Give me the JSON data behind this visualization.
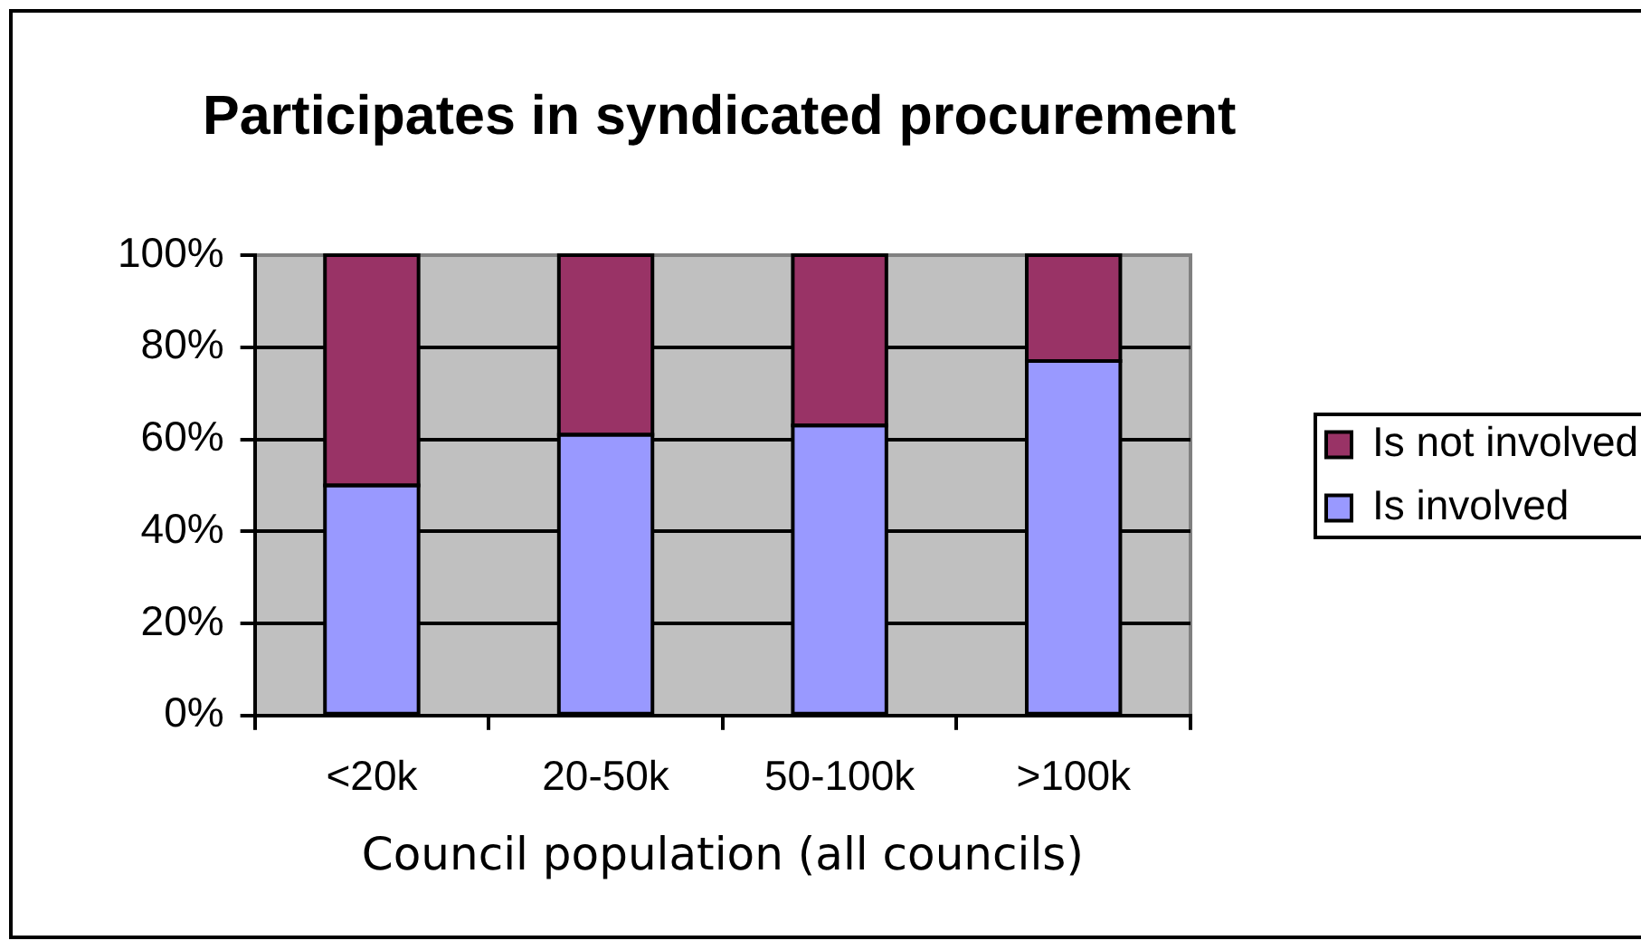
{
  "chart_data": {
    "type": "bar",
    "title": "Participates in syndicated procurement",
    "xlabel": "Council population (all councils)",
    "categories": [
      "<20k",
      "20-50k",
      "50-100k",
      ">100k"
    ],
    "series": [
      {
        "name": "Is involved",
        "color": "#9999ff",
        "values": [
          50,
          61,
          63,
          77
        ]
      },
      {
        "name": "Is not involved",
        "color": "#993366",
        "values": [
          50,
          39,
          37,
          23
        ]
      }
    ],
    "stacked": true,
    "ylim": [
      0,
      100
    ],
    "yticks": [
      {
        "value": 0,
        "label": "0%"
      },
      {
        "value": 20,
        "label": "20%"
      },
      {
        "value": 40,
        "label": "40%"
      },
      {
        "value": 60,
        "label": "60%"
      },
      {
        "value": 80,
        "label": "80%"
      },
      {
        "value": 100,
        "label": "100%"
      }
    ],
    "grid": "y",
    "legend": "right"
  }
}
